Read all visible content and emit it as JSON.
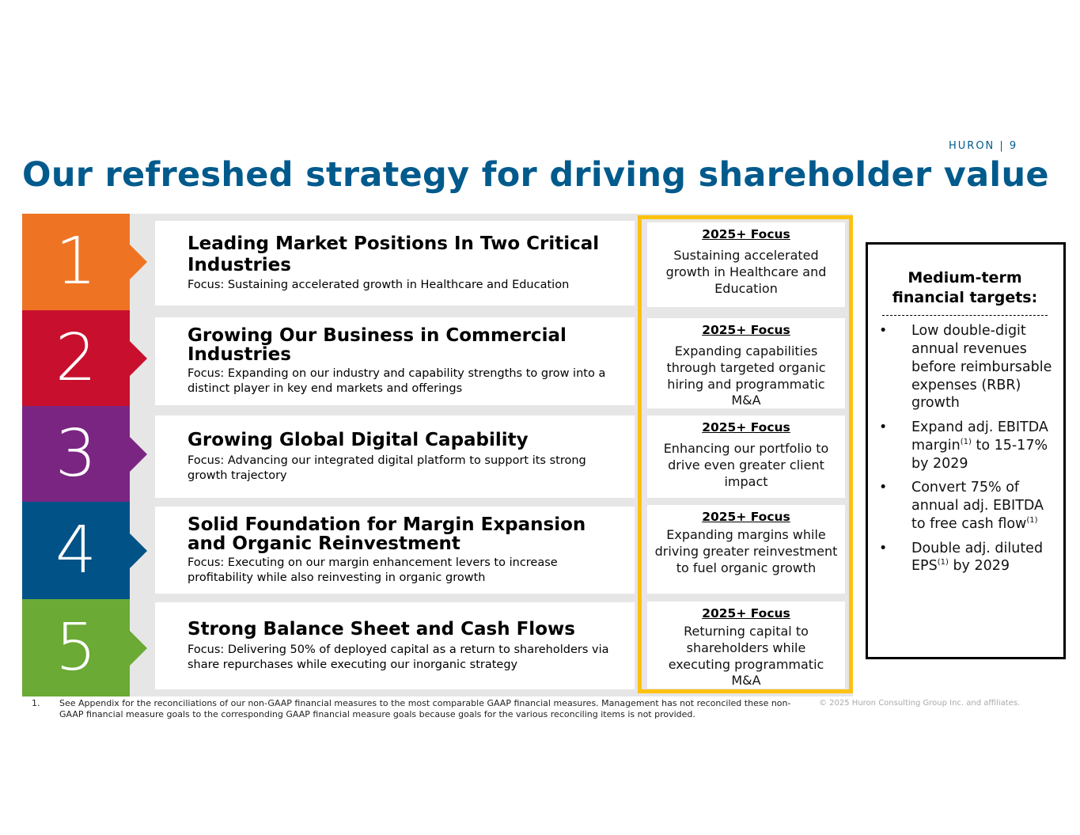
{
  "brand": "HURON | 9",
  "title": {
    "pre": "Our ",
    "bold": "refreshed",
    "post": " strategy for driving shareholder value"
  },
  "colors": {
    "title_blue": "#005a8c",
    "focus_border": "#fdc210",
    "pillar_colors": [
      "#ee7424",
      "#c8102e",
      "#7b2583",
      "#005287",
      "#6aaa35"
    ]
  },
  "pillars": [
    {
      "number": "1",
      "heading": "Leading Market Positions In Two Critical Industries",
      "focus": "Focus: Sustaining accelerated growth in Healthcare and Education",
      "focus_title": "2025+ Focus",
      "focus_text": "Sustaining accelerated growth in Healthcare and Education"
    },
    {
      "number": "2",
      "heading": "Growing Our Business in Commercial Industries",
      "focus": "Focus: Expanding on our industry and capability strengths to grow into a distinct player in key end markets and offerings",
      "focus_title": "2025+ Focus",
      "focus_text": "Expanding capabilities through targeted organic hiring and programmatic M&A"
    },
    {
      "number": "3",
      "heading": "Growing Global Digital Capability",
      "focus": "Focus: Advancing our integrated digital platform to support its strong growth trajectory",
      "focus_title": "2025+ Focus",
      "focus_text": "Enhancing our portfolio to drive even greater client impact"
    },
    {
      "number": "4",
      "heading": "Solid Foundation for Margin Expansion and Organic Reinvestment",
      "focus": "Focus: Executing on our margin enhancement levers to increase profitability while also reinvesting in organic growth",
      "focus_title": "2025+ Focus",
      "focus_text": "Expanding margins while driving greater reinvestment to fuel organic growth"
    },
    {
      "number": "5",
      "heading": "Strong Balance Sheet and Cash Flows",
      "focus": "Focus: Delivering 50% of deployed capital as a return to shareholders via share repurchases while executing our inorganic strategy",
      "focus_title": "2025+ Focus",
      "focus_text": "Returning capital to shareholders while executing programmatic M&A"
    }
  ],
  "targets": {
    "heading": "Medium-term financial targets:",
    "bullet": "•",
    "items": [
      {
        "text": "Low double-digit annual revenues before reimbursable expenses (RBR) growth"
      },
      {
        "pre": "Expand adj. EBITDA margin",
        "sup": "(1)",
        "post": " to 15-17% by 2029"
      },
      {
        "pre": "Convert 75% of annual adj. EBITDA to free cash flow",
        "sup": "(1)",
        "post": ""
      },
      {
        "pre": "Double adj. diluted EPS",
        "sup": "(1)",
        "post": " by 2029"
      }
    ]
  },
  "footnote": {
    "number": "1.",
    "text": "See Appendix for the reconciliations of our non-GAAP financial measures to the most comparable GAAP financial measures. Management has not reconciled these non-GAAP financial measure goals to the corresponding GAAP financial measure goals because goals for the various reconciling items is not provided."
  },
  "copyright": "© 2025 Huron Consulting Group Inc. and affiliates."
}
